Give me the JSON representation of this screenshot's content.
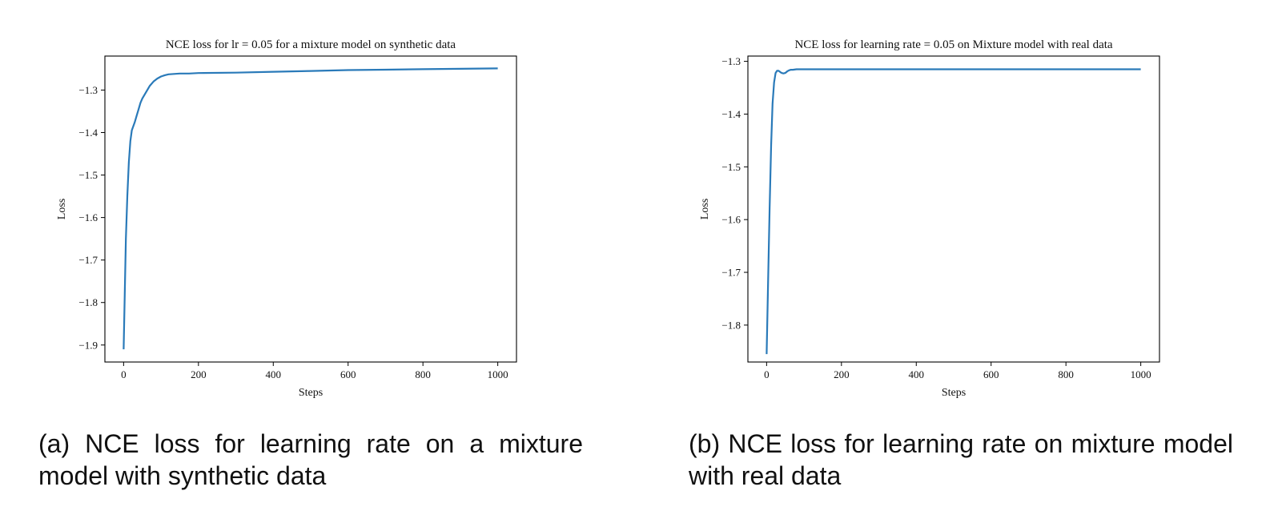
{
  "chart_data": [
    {
      "type": "line",
      "title": "NCE loss for lr = 0.05 for a mixture model on synthetic data",
      "xlabel": "Steps",
      "ylabel": "Loss",
      "xlim": [
        -50,
        1050
      ],
      "ylim": [
        -1.94,
        -1.22
      ],
      "xticks": [
        0,
        200,
        400,
        600,
        800,
        1000
      ],
      "yticks": [
        -1.9,
        -1.8,
        -1.7,
        -1.6,
        -1.5,
        -1.4,
        -1.3
      ],
      "grid": false,
      "color": "#2a7ab9",
      "series": [
        {
          "x": [
            0,
            3,
            6,
            10,
            14,
            18,
            22,
            26,
            30,
            35,
            40,
            45,
            50,
            60,
            70,
            80,
            90,
            100,
            110,
            120,
            135,
            150,
            175,
            200,
            300,
            400,
            500,
            600,
            700,
            800,
            900,
            1000
          ],
          "y": [
            -1.91,
            -1.78,
            -1.65,
            -1.55,
            -1.47,
            -1.42,
            -1.395,
            -1.385,
            -1.375,
            -1.36,
            -1.345,
            -1.33,
            -1.32,
            -1.305,
            -1.29,
            -1.28,
            -1.273,
            -1.268,
            -1.265,
            -1.263,
            -1.262,
            -1.261,
            -1.261,
            -1.26,
            -1.259,
            -1.257,
            -1.255,
            -1.253,
            -1.252,
            -1.251,
            -1.25,
            -1.249
          ]
        }
      ]
    },
    {
      "type": "line",
      "title": "NCE loss for learning rate = 0.05 on Mixture model with real data",
      "xlabel": "Steps",
      "ylabel": "Loss",
      "xlim": [
        -50,
        1050
      ],
      "ylim": [
        -1.87,
        -1.29
      ],
      "xticks": [
        0,
        200,
        400,
        600,
        800,
        1000
      ],
      "yticks": [
        -1.8,
        -1.7,
        -1.6,
        -1.5,
        -1.4,
        -1.3
      ],
      "grid": false,
      "color": "#2a7ab9",
      "series": [
        {
          "x": [
            0,
            4,
            8,
            12,
            16,
            20,
            24,
            28,
            32,
            36,
            40,
            45,
            50,
            55,
            60,
            65,
            70,
            80,
            100,
            150,
            200,
            400,
            600,
            800,
            1000
          ],
          "y": [
            -1.855,
            -1.72,
            -1.58,
            -1.46,
            -1.38,
            -1.34,
            -1.322,
            -1.318,
            -1.318,
            -1.32,
            -1.322,
            -1.323,
            -1.322,
            -1.319,
            -1.317,
            -1.316,
            -1.316,
            -1.315,
            -1.315,
            -1.315,
            -1.315,
            -1.315,
            -1.315,
            -1.315,
            -1.315
          ]
        }
      ]
    }
  ],
  "captions": [
    "(a) NCE loss for learning rate on a mixture model with synthetic data",
    "(b) NCE loss for learning rate on mixture model with real data"
  ]
}
